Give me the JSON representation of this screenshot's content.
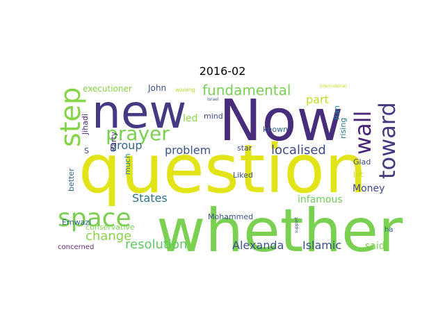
{
  "title": "2016-02",
  "words": [
    {
      "text": "question",
      "color": "#e3e418"
    },
    {
      "text": "whether",
      "color": "#7ad151"
    },
    {
      "text": "Now",
      "color": "#472d7b"
    },
    {
      "text": "new",
      "color": "#443983"
    },
    {
      "text": "prayer",
      "color": "#7ad151"
    },
    {
      "text": "step",
      "color": "#86d549"
    },
    {
      "text": "toward",
      "color": "#443983"
    },
    {
      "text": "wall",
      "color": "#482576"
    },
    {
      "text": "space",
      "color": "#7ad151"
    },
    {
      "text": "fundamental",
      "color": "#7ad151"
    },
    {
      "text": "localised",
      "color": "#3e4989"
    },
    {
      "text": "resolution",
      "color": "#5ec962"
    },
    {
      "text": "change",
      "color": "#86d549"
    },
    {
      "text": "problem",
      "color": "#3b528b"
    },
    {
      "text": "group",
      "color": "#31688e"
    },
    {
      "text": "part",
      "color": "#c2df23"
    },
    {
      "text": "States",
      "color": "#2c728e"
    },
    {
      "text": "Islamic",
      "color": "#3b528b"
    },
    {
      "text": "Alexanda",
      "color": "#3b528b"
    },
    {
      "text": "Money",
      "color": "#3e4989"
    },
    {
      "text": "infamous",
      "color": "#6ece58"
    },
    {
      "text": "said",
      "color": "#7ad151"
    },
    {
      "text": "led",
      "color": "#8fd744"
    },
    {
      "text": "executioner",
      "color": "#86d549"
    },
    {
      "text": "John",
      "color": "#3b528b"
    },
    {
      "text": "known",
      "color": "#31688e"
    },
    {
      "text": "Glad",
      "color": "#3e4989"
    },
    {
      "text": "lot",
      "color": "#d0e11c"
    },
    {
      "text": "Ran",
      "color": "#2a788e"
    },
    {
      "text": "rising",
      "color": "#2a788e"
    },
    {
      "text": "mind",
      "color": "#3e4989"
    },
    {
      "text": "star",
      "color": "#3e4989"
    },
    {
      "text": "Liked",
      "color": "#3b528b"
    },
    {
      "text": "Mohammed",
      "color": "#3b528b"
    },
    {
      "text": "Emwazi",
      "color": "#31688e"
    },
    {
      "text": "better",
      "color": "#31688e"
    },
    {
      "text": "much",
      "color": "#287c8e"
    },
    {
      "text": "Party",
      "color": "#482878"
    },
    {
      "text": "Jihadi",
      "color": "#482878"
    },
    {
      "text": "S",
      "color": "#3e4989"
    },
    {
      "text": "conservative",
      "color": "#7ad151"
    },
    {
      "text": "concerned",
      "color": "#6c2d7f"
    },
    {
      "text": "ha",
      "color": "#355f8d"
    },
    {
      "text": "waning",
      "color": "#b5de2b"
    },
    {
      "text": "international",
      "color": "#c8e020"
    },
    {
      "text": "Israel",
      "color": "#3b528b"
    },
    {
      "text": "support",
      "color": "#3b528b"
    }
  ]
}
